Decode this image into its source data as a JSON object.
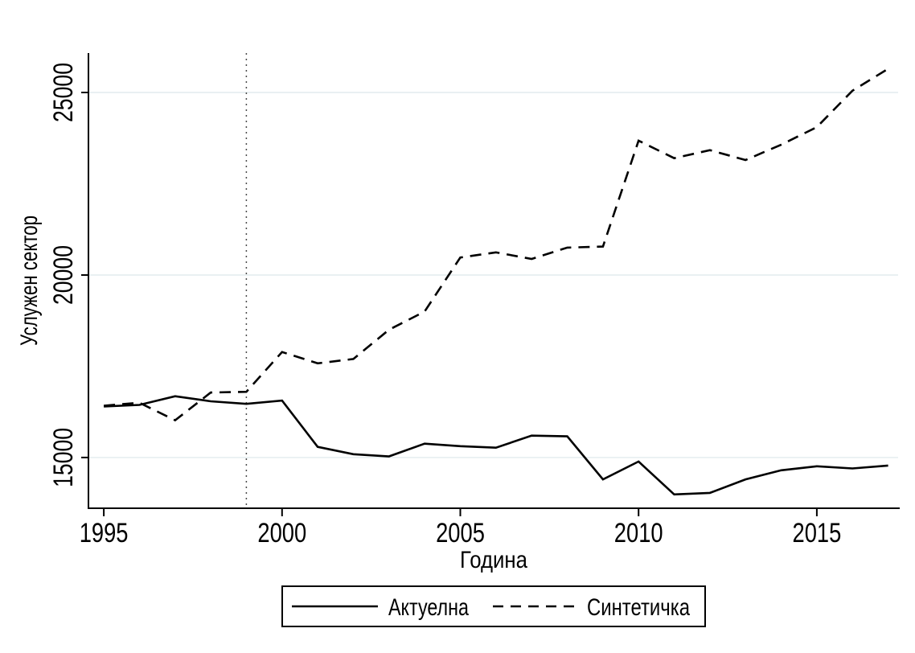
{
  "figure": {
    "background": "#ffffff",
    "axis_color": "#000000",
    "grid_color": "#e2ecee",
    "series_color": "#000000",
    "vline_color": "#4a4a4a"
  },
  "chart_data": {
    "type": "line",
    "title": "",
    "xlabel": "Година",
    "ylabel": "Услужен сектор",
    "x": [
      1995,
      1996,
      1997,
      1998,
      1999,
      2000,
      2001,
      2002,
      2003,
      2004,
      2005,
      2006,
      2007,
      2008,
      2009,
      2010,
      2011,
      2012,
      2013,
      2014,
      2015,
      2016,
      2017
    ],
    "series": [
      {
        "name": "Актуелна",
        "line_style": "solid",
        "values": [
          16400,
          16440,
          16680,
          16540,
          16470,
          16560,
          15290,
          15090,
          15030,
          15380,
          15310,
          15270,
          15600,
          15580,
          14400,
          14890,
          13990,
          14030,
          14400,
          14650,
          14760,
          14700,
          14780
        ]
      },
      {
        "name": "Синтетичка",
        "line_style": "dashed",
        "values": [
          16420,
          16500,
          16020,
          16780,
          16800,
          17890,
          17580,
          17700,
          18500,
          19000,
          20480,
          20620,
          20440,
          20750,
          20780,
          23680,
          23200,
          23420,
          23150,
          23570,
          24050,
          25050,
          25650
        ]
      }
    ],
    "vline_x": 1999,
    "vline_style": "dotted",
    "xticks": [
      1995,
      2000,
      2005,
      2010,
      2015
    ],
    "yticks": [
      15000,
      20000,
      25000
    ],
    "xlim": [
      1994.57,
      2017.28
    ],
    "ylim": [
      13610,
      26080
    ],
    "grid": "horizontal",
    "legend_position": "bottom-center"
  }
}
